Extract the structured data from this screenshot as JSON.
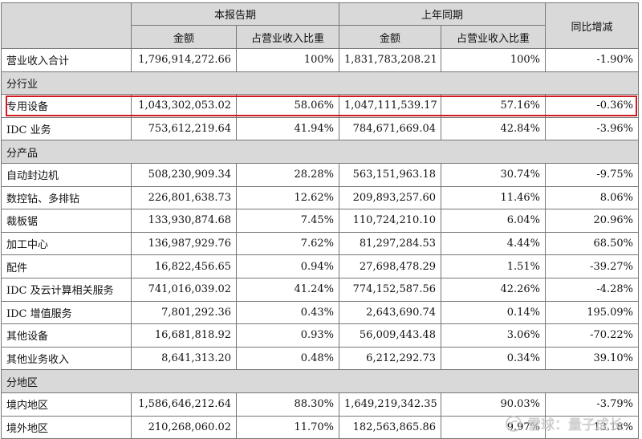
{
  "header": {
    "label_col": "",
    "current_period": "本报告期",
    "prior_period": "上年同期",
    "yoy": "同比增减",
    "amount": "金额",
    "share": "占营业收入比重"
  },
  "total": {
    "label": "营业收入合计",
    "cur_amount": "1,796,914,272.66",
    "cur_share": "100%",
    "prev_amount": "1,831,783,208.21",
    "prev_share": "100%",
    "yoy": "-1.90%"
  },
  "sections": [
    {
      "title": "分行业",
      "rows": [
        {
          "label": "专用设备",
          "cur_amount": "1,043,302,053.02",
          "cur_share": "58.06%",
          "prev_amount": "1,047,111,539.17",
          "prev_share": "57.16%",
          "yoy": "-0.36%"
        },
        {
          "label": "IDC 业务",
          "cur_amount": "753,612,219.64",
          "cur_share": "41.94%",
          "prev_amount": "784,671,669.04",
          "prev_share": "42.84%",
          "yoy": "-3.96%"
        }
      ]
    },
    {
      "title": "分产品",
      "rows": [
        {
          "label": "自动封边机",
          "cur_amount": "508,230,909.34",
          "cur_share": "28.28%",
          "prev_amount": "563,151,963.18",
          "prev_share": "30.74%",
          "yoy": "-9.75%"
        },
        {
          "label": "数控钻、多排钻",
          "cur_amount": "226,801,638.73",
          "cur_share": "12.62%",
          "prev_amount": "209,893,257.60",
          "prev_share": "11.46%",
          "yoy": "8.06%"
        },
        {
          "label": "裁板锯",
          "cur_amount": "133,930,874.68",
          "cur_share": "7.45%",
          "prev_amount": "110,724,210.10",
          "prev_share": "6.04%",
          "yoy": "20.96%"
        },
        {
          "label": "加工中心",
          "cur_amount": "136,987,929.76",
          "cur_share": "7.62%",
          "prev_amount": "81,297,284.53",
          "prev_share": "4.44%",
          "yoy": "68.50%"
        },
        {
          "label": "配件",
          "cur_amount": "16,822,456.65",
          "cur_share": "0.94%",
          "prev_amount": "27,698,478.29",
          "prev_share": "1.51%",
          "yoy": "-39.27%"
        },
        {
          "label": "IDC 及云计算相关服务",
          "cur_amount": "741,016,039.02",
          "cur_share": "41.24%",
          "prev_amount": "774,152,587.56",
          "prev_share": "42.26%",
          "yoy": "-4.28%"
        },
        {
          "label": "IDC 增值服务",
          "cur_amount": "7,801,292.36",
          "cur_share": "0.43%",
          "prev_amount": "2,643,690.74",
          "prev_share": "0.14%",
          "yoy": "195.09%"
        },
        {
          "label": "其他设备",
          "cur_amount": "16,681,818.92",
          "cur_share": "0.93%",
          "prev_amount": "56,009,443.48",
          "prev_share": "3.06%",
          "yoy": "-70.22%"
        },
        {
          "label": "其他业务收入",
          "cur_amount": "8,641,313.20",
          "cur_share": "0.48%",
          "prev_amount": "6,212,292.73",
          "prev_share": "0.34%",
          "yoy": "39.10%"
        }
      ]
    },
    {
      "title": "分地区",
      "rows": [
        {
          "label": "境内地区",
          "cur_amount": "1,586,646,212.64",
          "cur_share": "88.30%",
          "prev_amount": "1,649,219,342.35",
          "prev_share": "90.03%",
          "yoy": "-3.79%"
        },
        {
          "label": "境外地区",
          "cur_amount": "210,268,060.02",
          "cur_share": "11.70%",
          "prev_amount": "182,563,865.86",
          "prev_share": "9.97%",
          "yoy": "13.18%"
        }
      ]
    }
  ],
  "watermark": {
    "text": "雪球：量子成长",
    "icon": "snowball-logo-icon"
  },
  "colors": {
    "header_bg": "#d9d9d9",
    "border": "#777777",
    "highlight": "#d2191e"
  }
}
